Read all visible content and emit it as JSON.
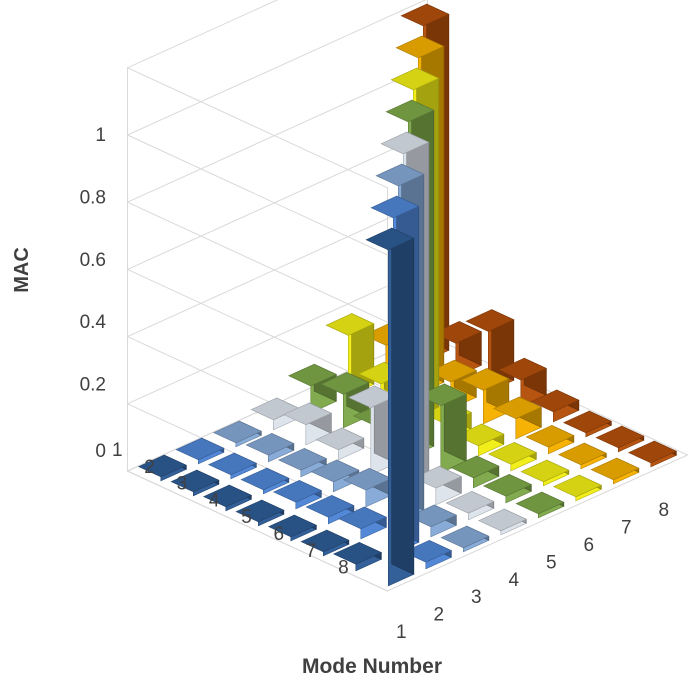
{
  "chart_data": {
    "type": "bar3d",
    "title": "",
    "zlabel": "MAC",
    "xlabel": "Mode Number",
    "ylabel": "",
    "zlim": [
      0,
      1
    ],
    "zticks": [
      "0",
      "0.2",
      "0.4",
      "0.6",
      "0.8",
      "1"
    ],
    "modes_a": [
      "1",
      "2",
      "3",
      "4",
      "5",
      "6",
      "7",
      "8"
    ],
    "modes_b": [
      "1",
      "2",
      "3",
      "4",
      "5",
      "6",
      "7",
      "8"
    ],
    "series_colors": [
      "#2f5d96",
      "#4f86d6",
      "#86a9d6",
      "#dce3ec",
      "#7ea94a",
      "#f2ee16",
      "#f6b000",
      "#b5500c"
    ],
    "matrix": [
      [
        1.0,
        0.02,
        0.01,
        0.01,
        0.01,
        0.01,
        0.01,
        0.01
      ],
      [
        0.02,
        1.0,
        0.03,
        0.02,
        0.02,
        0.01,
        0.01,
        0.01
      ],
      [
        0.01,
        0.03,
        1.0,
        0.05,
        0.03,
        0.02,
        0.02,
        0.01
      ],
      [
        0.01,
        0.02,
        0.05,
        1.0,
        0.2,
        0.03,
        0.06,
        0.03
      ],
      [
        0.01,
        0.02,
        0.03,
        0.2,
        1.0,
        0.05,
        0.1,
        0.08
      ],
      [
        0.01,
        0.01,
        0.02,
        0.03,
        0.05,
        1.0,
        0.08,
        0.18
      ],
      [
        0.01,
        0.01,
        0.02,
        0.06,
        0.1,
        0.08,
        1.0,
        0.1
      ],
      [
        0.01,
        0.01,
        0.01,
        0.03,
        0.08,
        0.18,
        0.1,
        1.0
      ]
    ]
  }
}
